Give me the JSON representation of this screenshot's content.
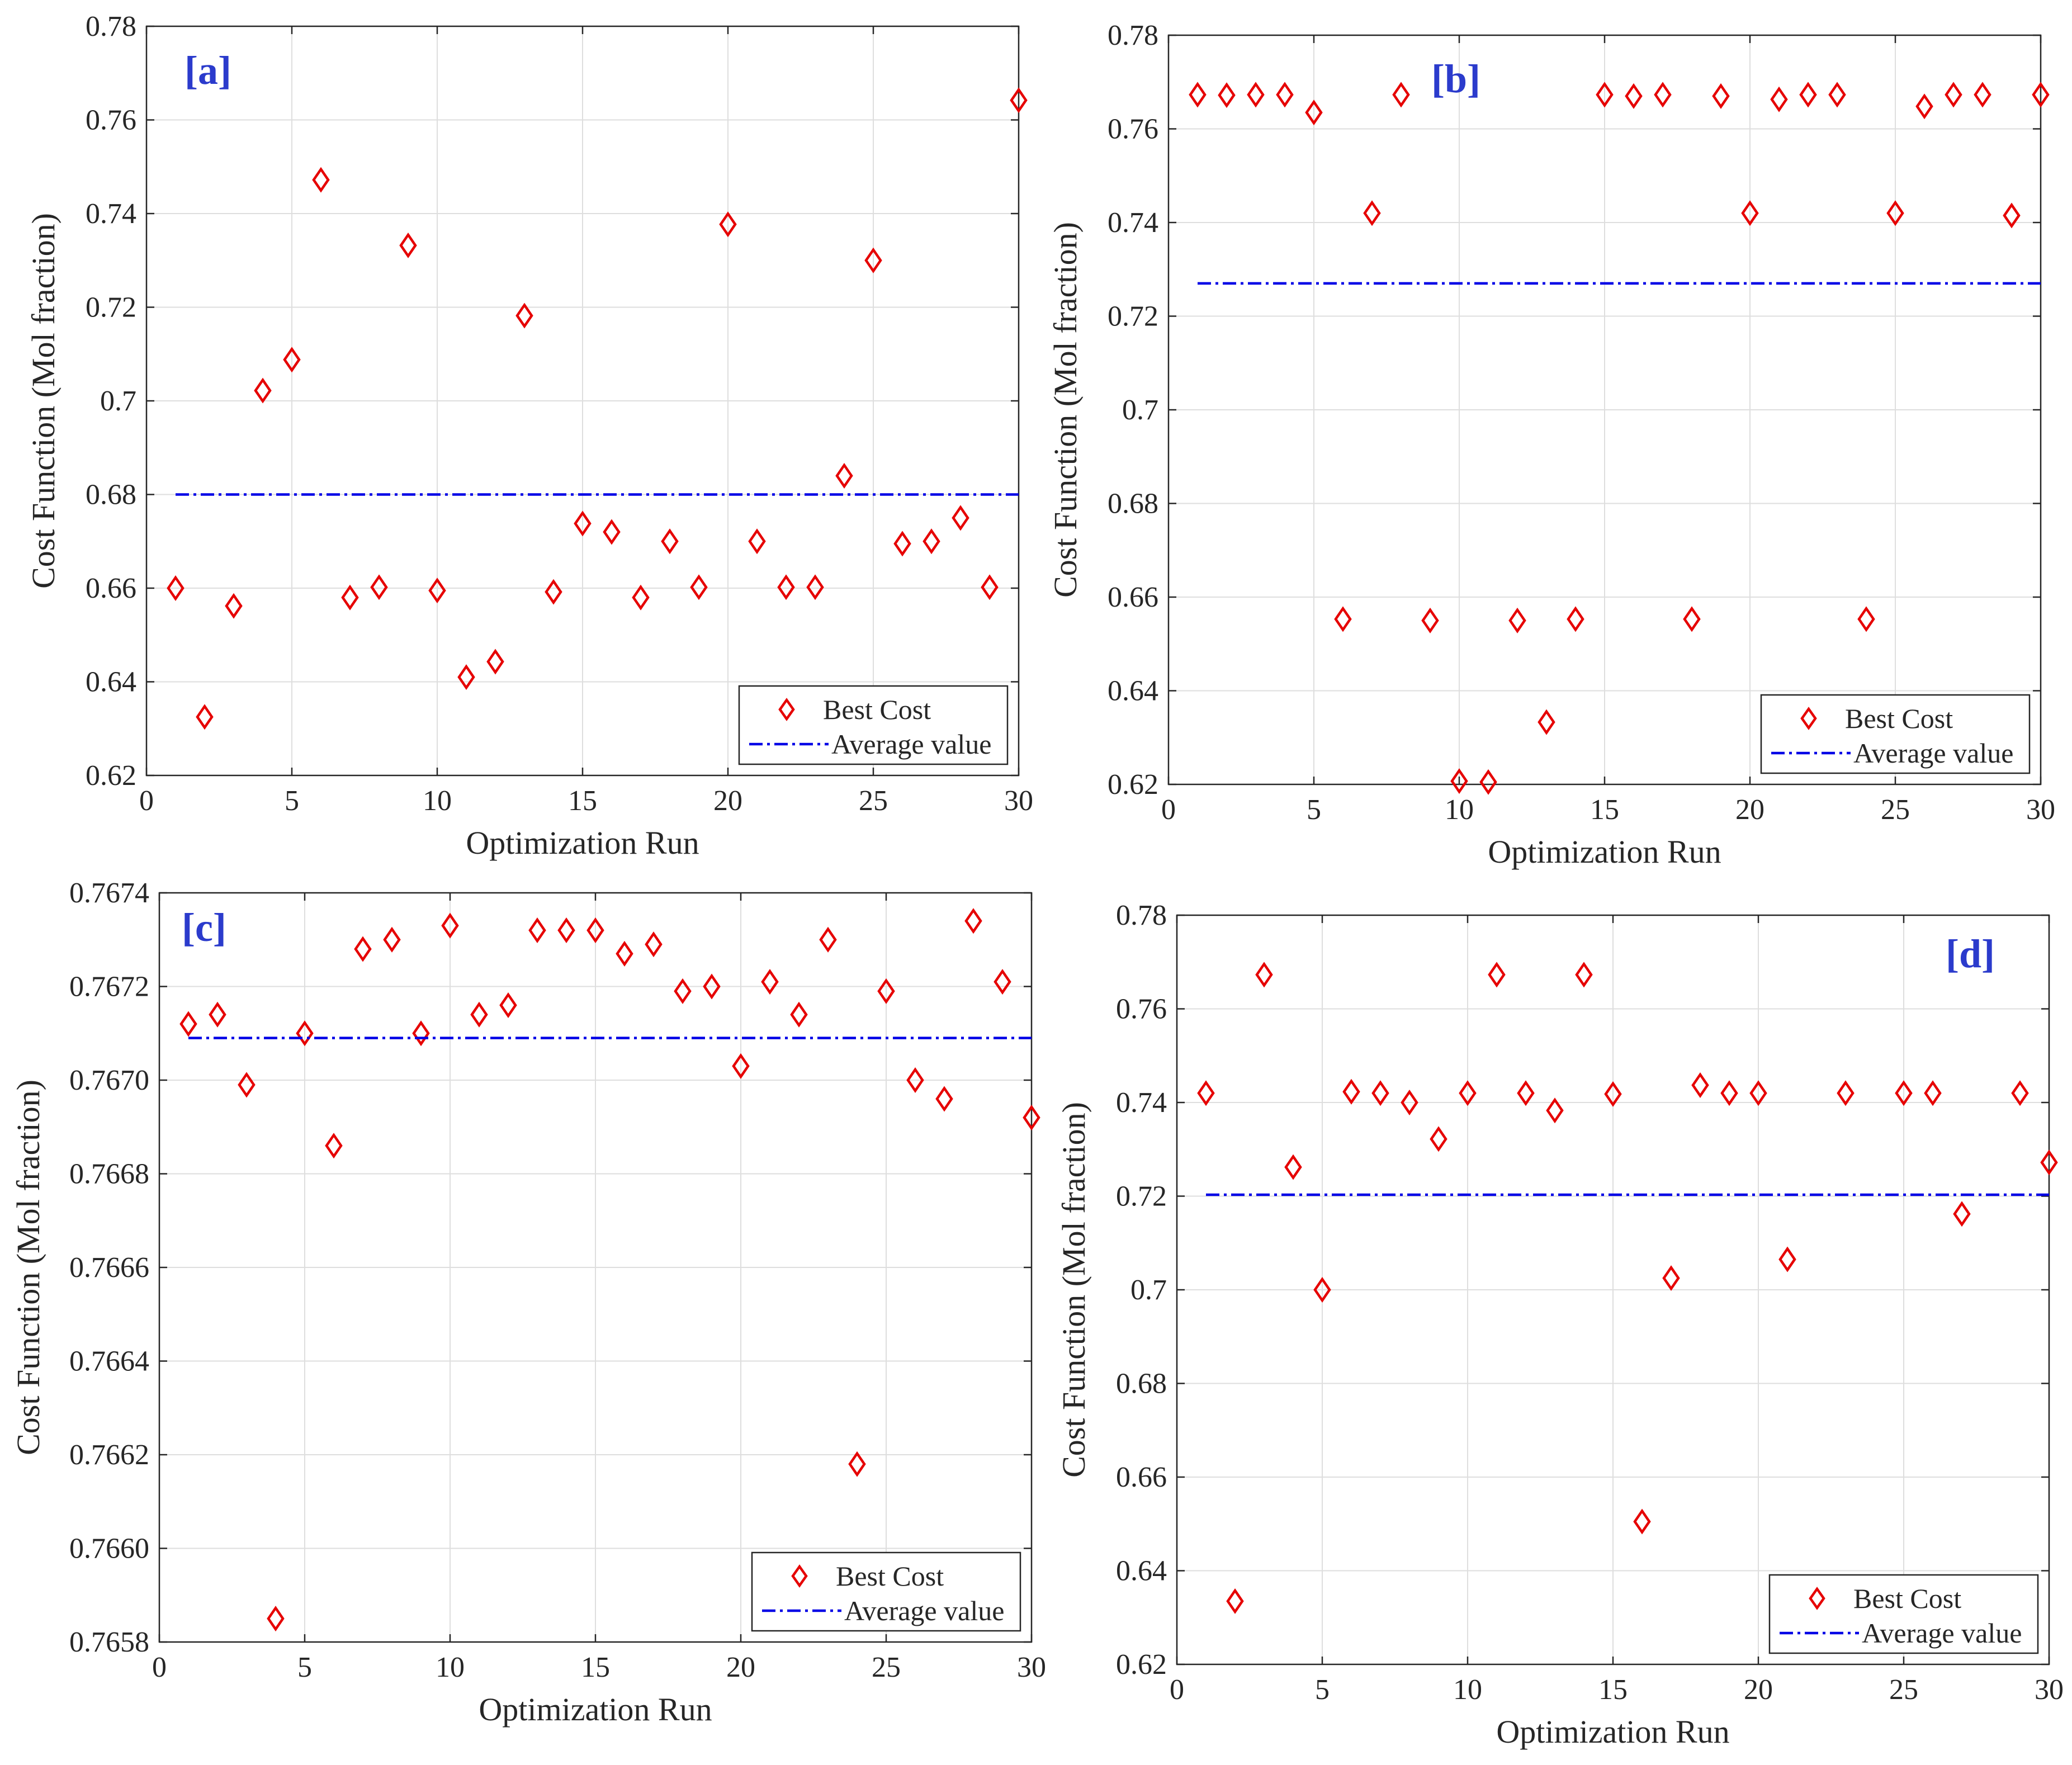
{
  "figure": {
    "marker_color": "#e60000",
    "average_color": "#0000e6",
    "tag_color": "#2b3bcc",
    "grid_color": "#dedede"
  },
  "chart_data": [
    {
      "id": "a",
      "type": "scatter",
      "tag": "[a]",
      "xlabel": "Optimization Run",
      "ylabel": "Cost Function (Mol fraction)",
      "xlim": [
        0,
        30
      ],
      "ylim": [
        0.62,
        0.78
      ],
      "xticks": [
        0,
        5,
        10,
        15,
        20,
        25,
        30
      ],
      "xtick_labels": [
        "0",
        "5",
        "10",
        "15",
        "20",
        "25",
        "30"
      ],
      "yticks": [
        0.62,
        0.64,
        0.66,
        0.68,
        0.7,
        0.72,
        0.74,
        0.76,
        0.78
      ],
      "ytick_labels": [
        "0.62",
        "0.64",
        "0.66",
        "0.68",
        "0.7",
        "0.72",
        "0.74",
        "0.76",
        "0.78"
      ],
      "grid": true,
      "legend": {
        "position": "bottom-right",
        "entries": [
          "Best Cost",
          "Average value"
        ]
      },
      "series": [
        {
          "name": "Best Cost",
          "marker": "diamond",
          "x": [
            1,
            2,
            3,
            4,
            5,
            6,
            7,
            8,
            9,
            10,
            11,
            12,
            13,
            14,
            15,
            16,
            17,
            18,
            19,
            20,
            21,
            22,
            23,
            24,
            25,
            26,
            27,
            28,
            29,
            30
          ],
          "values": [
            0.66,
            0.6325,
            0.6562,
            0.7022,
            0.7088,
            0.7472,
            0.658,
            0.6602,
            0.7332,
            0.6595,
            0.641,
            0.6443,
            0.7182,
            0.6592,
            0.6738,
            0.672,
            0.658,
            0.67,
            0.6602,
            0.7377,
            0.67,
            0.6602,
            0.6602,
            0.684,
            0.73,
            0.6695,
            0.67,
            0.675,
            0.6602,
            0.7642
          ]
        },
        {
          "name": "Average value",
          "style": "dash-dot",
          "x": [
            1,
            30
          ],
          "values": [
            0.68,
            0.68
          ]
        }
      ]
    },
    {
      "id": "b",
      "type": "scatter",
      "tag": "[b]",
      "xlabel": "Optimization Run",
      "ylabel": "Cost Function (Mol fraction)",
      "xlim": [
        0,
        30
      ],
      "ylim": [
        0.62,
        0.78
      ],
      "xticks": [
        0,
        5,
        10,
        15,
        20,
        25,
        30
      ],
      "xtick_labels": [
        "0",
        "5",
        "10",
        "15",
        "20",
        "25",
        "30"
      ],
      "yticks": [
        0.62,
        0.64,
        0.66,
        0.68,
        0.7,
        0.72,
        0.74,
        0.76,
        0.78
      ],
      "ytick_labels": [
        "0.62",
        "0.64",
        "0.66",
        "0.68",
        "0.7",
        "0.72",
        "0.74",
        "0.76",
        "0.78"
      ],
      "grid": true,
      "legend": {
        "position": "bottom-right",
        "entries": [
          "Best Cost",
          "Average value"
        ]
      },
      "series": [
        {
          "name": "Best Cost",
          "marker": "diamond",
          "x": [
            1,
            2,
            3,
            4,
            5,
            6,
            7,
            8,
            9,
            10,
            11,
            12,
            13,
            14,
            15,
            16,
            17,
            18,
            19,
            20,
            21,
            22,
            23,
            24,
            25,
            26,
            27,
            28,
            29,
            30
          ],
          "values": [
            0.7673,
            0.7672,
            0.7673,
            0.7673,
            0.7635,
            0.6553,
            0.742,
            0.7673,
            0.655,
            0.6207,
            0.6205,
            0.655,
            0.6333,
            0.6553,
            0.7673,
            0.767,
            0.7673,
            0.6553,
            0.767,
            0.742,
            0.7663,
            0.7673,
            0.7673,
            0.6553,
            0.742,
            0.7648,
            0.7673,
            0.7673,
            0.7415,
            0.7673
          ]
        },
        {
          "name": "Average value",
          "style": "dash-dot",
          "x": [
            1,
            30
          ],
          "values": [
            0.727,
            0.727
          ]
        }
      ]
    },
    {
      "id": "c",
      "type": "scatter",
      "tag": "[c]",
      "xlabel": "Optimization Run",
      "ylabel": "Cost Function (Mol fraction)",
      "xlim": [
        0,
        30
      ],
      "ylim": [
        0.7658,
        0.7674
      ],
      "xticks": [
        0,
        5,
        10,
        15,
        20,
        25,
        30
      ],
      "xtick_labels": [
        "0",
        "5",
        "10",
        "15",
        "20",
        "25",
        "30"
      ],
      "yticks": [
        0.7658,
        0.766,
        0.7662,
        0.7664,
        0.7666,
        0.7668,
        0.767,
        0.7672,
        0.7674
      ],
      "ytick_labels": [
        "0.7658",
        "0.7660",
        "0.7662",
        "0.7664",
        "0.7666",
        "0.7668",
        "0.7670",
        "0.7672",
        "0.7674"
      ],
      "grid": true,
      "legend": {
        "position": "bottom-right",
        "entries": [
          "Best Cost",
          "Average value"
        ]
      },
      "series": [
        {
          "name": "Best Cost",
          "marker": "diamond",
          "x": [
            1,
            2,
            3,
            4,
            5,
            6,
            7,
            8,
            9,
            10,
            11,
            12,
            13,
            14,
            15,
            16,
            17,
            18,
            19,
            20,
            21,
            22,
            23,
            24,
            25,
            26,
            27,
            28,
            29,
            30
          ],
          "values": [
            0.76712,
            0.76714,
            0.76699,
            0.76585,
            0.7671,
            0.76686,
            0.76728,
            0.7673,
            0.7671,
            0.76733,
            0.76714,
            0.76716,
            0.76732,
            0.76732,
            0.76732,
            0.76727,
            0.76729,
            0.76719,
            0.7672,
            0.76703,
            0.76721,
            0.76714,
            0.7673,
            0.76618,
            0.76719,
            0.767,
            0.76696,
            0.76734,
            0.76721,
            0.76692
          ]
        },
        {
          "name": "Average value",
          "style": "dash-dot",
          "x": [
            1,
            30
          ],
          "values": [
            0.76709,
            0.76709
          ]
        }
      ]
    },
    {
      "id": "d",
      "type": "scatter",
      "tag": "[d]",
      "xlabel": "Optimization Run",
      "ylabel": "Cost Function (Mol fraction)",
      "xlim": [
        0,
        30
      ],
      "ylim": [
        0.62,
        0.78
      ],
      "xticks": [
        0,
        5,
        10,
        15,
        20,
        25,
        30
      ],
      "xtick_labels": [
        "0",
        "5",
        "10",
        "15",
        "20",
        "25",
        "30"
      ],
      "yticks": [
        0.62,
        0.64,
        0.66,
        0.68,
        0.7,
        0.72,
        0.74,
        0.76,
        0.78
      ],
      "ytick_labels": [
        "0.62",
        "0.64",
        "0.66",
        "0.68",
        "0.7",
        "0.72",
        "0.74",
        "0.76",
        "0.78"
      ],
      "grid": true,
      "legend": {
        "position": "bottom-right",
        "entries": [
          "Best Cost",
          "Average value"
        ]
      },
      "series": [
        {
          "name": "Best Cost",
          "marker": "diamond",
          "x": [
            1,
            2,
            3,
            4,
            5,
            6,
            7,
            8,
            9,
            10,
            11,
            12,
            13,
            14,
            15,
            16,
            17,
            18,
            19,
            20,
            21,
            23,
            25,
            26,
            27,
            29,
            30
          ],
          "values": [
            0.742,
            0.6335,
            0.7673,
            0.7262,
            0.7,
            0.7423,
            0.742,
            0.74,
            0.7322,
            0.742,
            0.7673,
            0.742,
            0.7383,
            0.7673,
            0.7418,
            0.6505,
            0.7025,
            0.7437,
            0.742,
            0.742,
            0.7065,
            0.742,
            0.742,
            0.742,
            0.7162,
            0.742,
            0.7272
          ]
        },
        {
          "name": "Average value",
          "style": "dash-dot",
          "x": [
            1,
            30
          ],
          "values": [
            0.7203,
            0.7203
          ]
        }
      ]
    }
  ]
}
